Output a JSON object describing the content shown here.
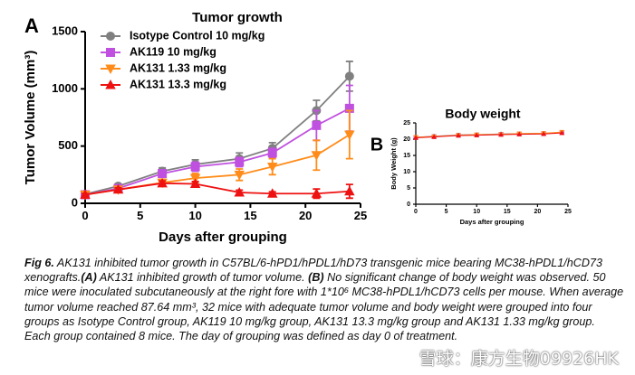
{
  "panel_labels": [
    "A",
    "B"
  ],
  "chart_data": [
    {
      "type": "line",
      "title": "Tumor growth",
      "x_label": "Days after grouping",
      "y_label": "Tumor Volume (mm³)",
      "x": [
        0,
        3,
        7,
        10,
        14,
        17,
        21,
        24
      ],
      "xlim": [
        0,
        25
      ],
      "xticks": [
        0,
        5,
        10,
        15,
        20,
        25
      ],
      "ylim": [
        0,
        1500
      ],
      "yticks": [
        0,
        500,
        1000,
        1500
      ],
      "series": [
        {
          "name": "Isotype Control 10 mg/kg",
          "color": "#808080",
          "marker": "circle",
          "values": [
            80,
            150,
            280,
            340,
            390,
            480,
            810,
            1110
          ],
          "errors": [
            10,
            20,
            30,
            40,
            50,
            50,
            90,
            130
          ]
        },
        {
          "name": "AK119 10 mg/kg",
          "color": "#c050e0",
          "marker": "square",
          "values": [
            75,
            130,
            260,
            320,
            360,
            440,
            680,
            830
          ],
          "errors": [
            10,
            20,
            30,
            40,
            40,
            40,
            130,
            200
          ]
        },
        {
          "name": "AK131 1.33 mg/kg",
          "color": "#ff8c1a",
          "marker": "triangle-down",
          "values": [
            75,
            120,
            180,
            220,
            250,
            320,
            420,
            600
          ],
          "errors": [
            10,
            15,
            30,
            40,
            50,
            70,
            130,
            210
          ]
        },
        {
          "name": "AK131 13.3 mg/kg",
          "color": "#ee1111",
          "marker": "triangle",
          "values": [
            75,
            120,
            175,
            170,
            95,
            85,
            85,
            105
          ],
          "errors": [
            10,
            15,
            20,
            20,
            20,
            15,
            40,
            60
          ]
        }
      ]
    },
    {
      "type": "line",
      "title": "Body weight",
      "x_label": "Days after grouping",
      "y_label": "Body Weight (g)",
      "x": [
        0,
        3,
        7,
        10,
        14,
        17,
        21,
        24
      ],
      "xlim": [
        0,
        25
      ],
      "xticks": [
        0,
        5,
        10,
        15,
        20,
        25
      ],
      "ylim": [
        0,
        25
      ],
      "yticks": [
        0,
        5,
        10,
        15,
        20,
        25
      ],
      "series": [
        {
          "color": "#808080",
          "marker": "circle",
          "values": [
            20.6,
            20.9,
            21.3,
            21.4,
            21.6,
            21.7,
            21.8,
            22.1
          ]
        },
        {
          "color": "#c050e0",
          "marker": "square",
          "values": [
            20.5,
            20.8,
            21.2,
            21.3,
            21.5,
            21.6,
            21.7,
            22.0
          ]
        },
        {
          "color": "#ff8c1a",
          "marker": "triangle-down",
          "values": [
            20.6,
            20.8,
            21.2,
            21.4,
            21.5,
            21.7,
            21.8,
            22.2
          ]
        },
        {
          "color": "#ee1111",
          "marker": "triangle",
          "values": [
            20.4,
            20.7,
            21.1,
            21.2,
            21.4,
            21.5,
            21.6,
            21.9
          ]
        }
      ]
    }
  ],
  "caption": [
    "Fig 6.",
    " AK131 inhibited tumor growth in C57BL/6-hPD1/hPDL1/hD73 transgenic mice bearing MC38-hPDL1/hCD73 xenografts.",
    "(A)",
    " AK131 inhibited growth of tumor volume. ",
    "(B)",
    " No significant change of body weight was observed. 50 mice were inoculated subcutaneously at the right fore with 1*10⁶ MC38-hPDL1/hCD73 cells per mouse. When average tumor volume reached 87.64 mm³, 32 mice with adequate tumor volume and body weight were grouped into four groups as Isotype Control group, AK119 10 mg/kg group, AK131 13.3 mg/kg group and AK131 1.33 mg/kg group. Each group contained 8 mice. The day of grouping was defined as day 0 of treatment."
  ],
  "watermark": "雪球：康方生物09926HK"
}
